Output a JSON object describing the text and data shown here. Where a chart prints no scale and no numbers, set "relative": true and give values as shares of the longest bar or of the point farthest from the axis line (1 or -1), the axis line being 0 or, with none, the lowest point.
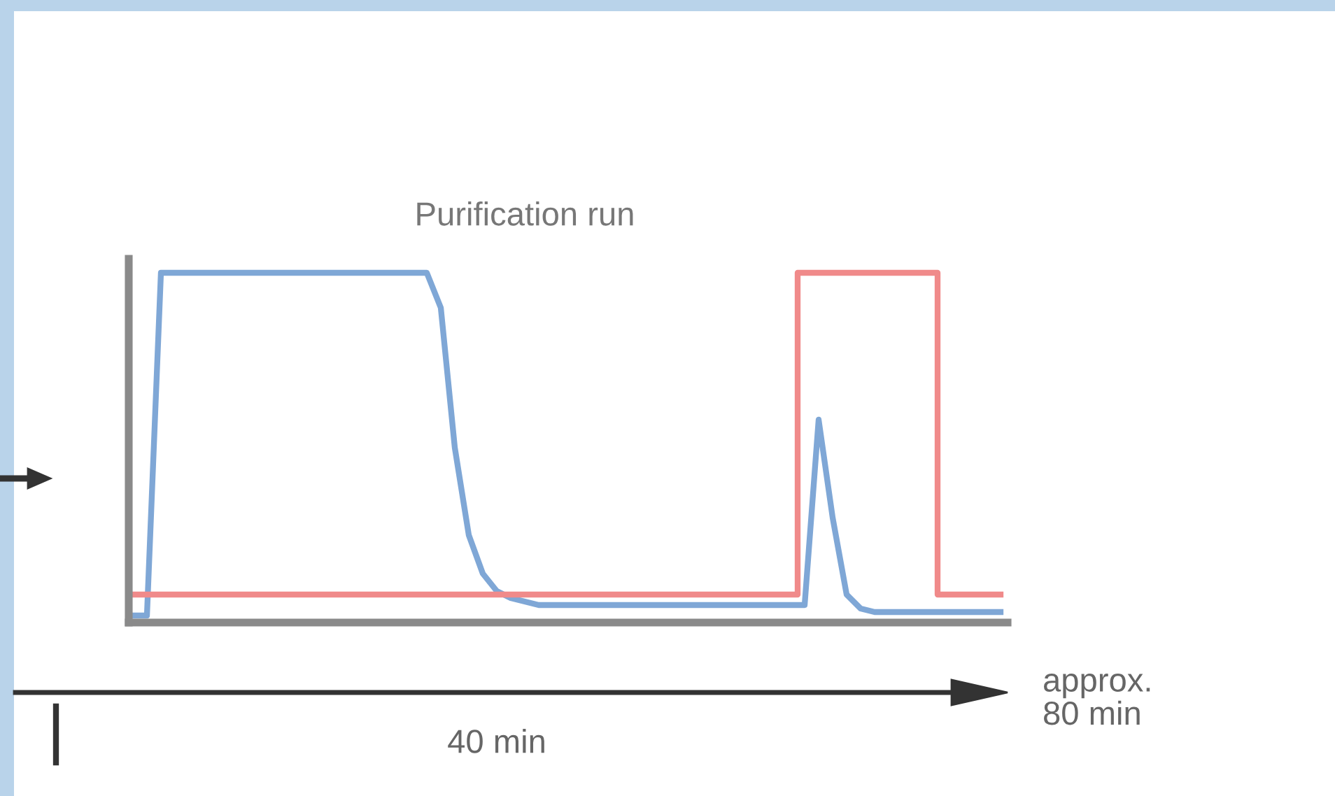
{
  "chart_data": {
    "type": "line",
    "title": "Purification run",
    "relative": true,
    "categories": [
      null,
      null,
      null,
      null,
      null,
      null,
      null,
      null,
      null,
      null,
      null,
      null,
      null,
      null,
      null,
      null,
      null,
      null,
      null,
      null,
      null,
      null,
      null,
      null,
      null,
      null,
      null,
      null,
      null,
      null,
      null,
      null,
      null,
      null,
      null,
      null,
      null,
      null,
      null,
      null,
      null,
      null,
      null,
      null,
      null,
      null,
      null,
      null,
      null,
      null,
      null,
      null,
      null,
      null,
      null,
      null,
      null,
      null,
      null,
      null,
      null,
      null,
      null
    ],
    "series": [
      {
        "color": "#7fa7d6",
        "values": [
          0.02,
          0.02,
          1.0,
          1.0,
          1.0,
          1.0,
          1.0,
          1.0,
          1.0,
          1.0,
          1.0,
          1.0,
          1.0,
          1.0,
          1.0,
          1.0,
          1.0,
          1.0,
          1.0,
          1.0,
          1.0,
          1.0,
          0.9,
          0.5,
          0.25,
          0.14,
          0.09,
          0.07,
          0.06,
          0.05,
          0.05,
          0.05,
          0.05,
          0.05,
          0.05,
          0.05,
          0.05,
          0.05,
          0.05,
          0.05,
          0.05,
          0.05,
          0.05,
          0.05,
          0.05,
          0.05,
          0.05,
          0.05,
          0.05,
          0.58,
          0.3,
          0.08,
          0.04,
          0.03,
          0.03,
          0.03,
          0.03,
          0.03,
          0.03,
          0.03,
          0.03,
          0.03,
          0.03
        ]
      },
      {
        "type": "step",
        "color": "#f08a8a",
        "values": [
          0.08,
          0.08,
          0.08,
          0.08,
          0.08,
          0.08,
          0.08,
          0.08,
          0.08,
          0.08,
          0.08,
          0.08,
          0.08,
          0.08,
          0.08,
          0.08,
          0.08,
          0.08,
          0.08,
          0.08,
          0.08,
          0.08,
          0.08,
          0.08,
          0.08,
          0.08,
          0.08,
          0.08,
          0.08,
          0.08,
          0.08,
          0.08,
          0.08,
          0.08,
          0.08,
          0.08,
          0.08,
          0.08,
          0.08,
          0.08,
          0.08,
          0.08,
          0.08,
          0.08,
          0.08,
          0.08,
          0.08,
          0.08,
          1.0,
          1.0,
          1.0,
          1.0,
          1.0,
          1.0,
          1.0,
          1.0,
          1.0,
          1.0,
          0.08,
          0.08,
          0.08,
          0.08,
          0.08
        ]
      }
    ],
    "annotations": [
      "40 min",
      "approx.\n80 min"
    ],
    "grid": false
  }
}
